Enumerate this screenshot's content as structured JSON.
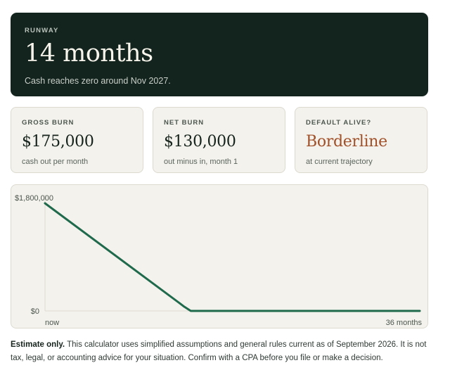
{
  "runway": {
    "eyebrow": "RUNWAY",
    "value": "14 months",
    "subtitle": "Cash reaches zero around Nov 2027."
  },
  "cards": [
    {
      "eyebrow": "GROSS BURN",
      "value": "$175,000",
      "note": "cash out per month"
    },
    {
      "eyebrow": "NET BURN",
      "value": "$130,000",
      "note": "out minus in, month 1"
    },
    {
      "eyebrow": "DEFAULT ALIVE?",
      "value": "Borderline",
      "note": "at current trajectory"
    }
  ],
  "colors": {
    "runway_bg": "#13231d",
    "line": "#1f6a4d",
    "warn": "#a0512a"
  },
  "chart_data": {
    "type": "line",
    "title": "",
    "xlabel": "",
    "ylabel": "",
    "x_tick_labels": [
      "now",
      "36 months"
    ],
    "y_tick_labels": [
      "$1,800,000",
      "$0"
    ],
    "xlim": [
      0,
      36
    ],
    "ylim": [
      0,
      1800000
    ],
    "grid": false,
    "series": [
      {
        "x": [
          0,
          13,
          13.3,
          14,
          36
        ],
        "y": [
          1800000,
          120000,
          80000,
          0,
          0
        ]
      }
    ]
  },
  "disclaimer": {
    "bold": "Estimate only.",
    "text": " This calculator uses simplified assumptions and general rules current as of September 2026. It is not tax, legal, or accounting advice for your situation. Confirm with a CPA before you file or make a decision."
  }
}
